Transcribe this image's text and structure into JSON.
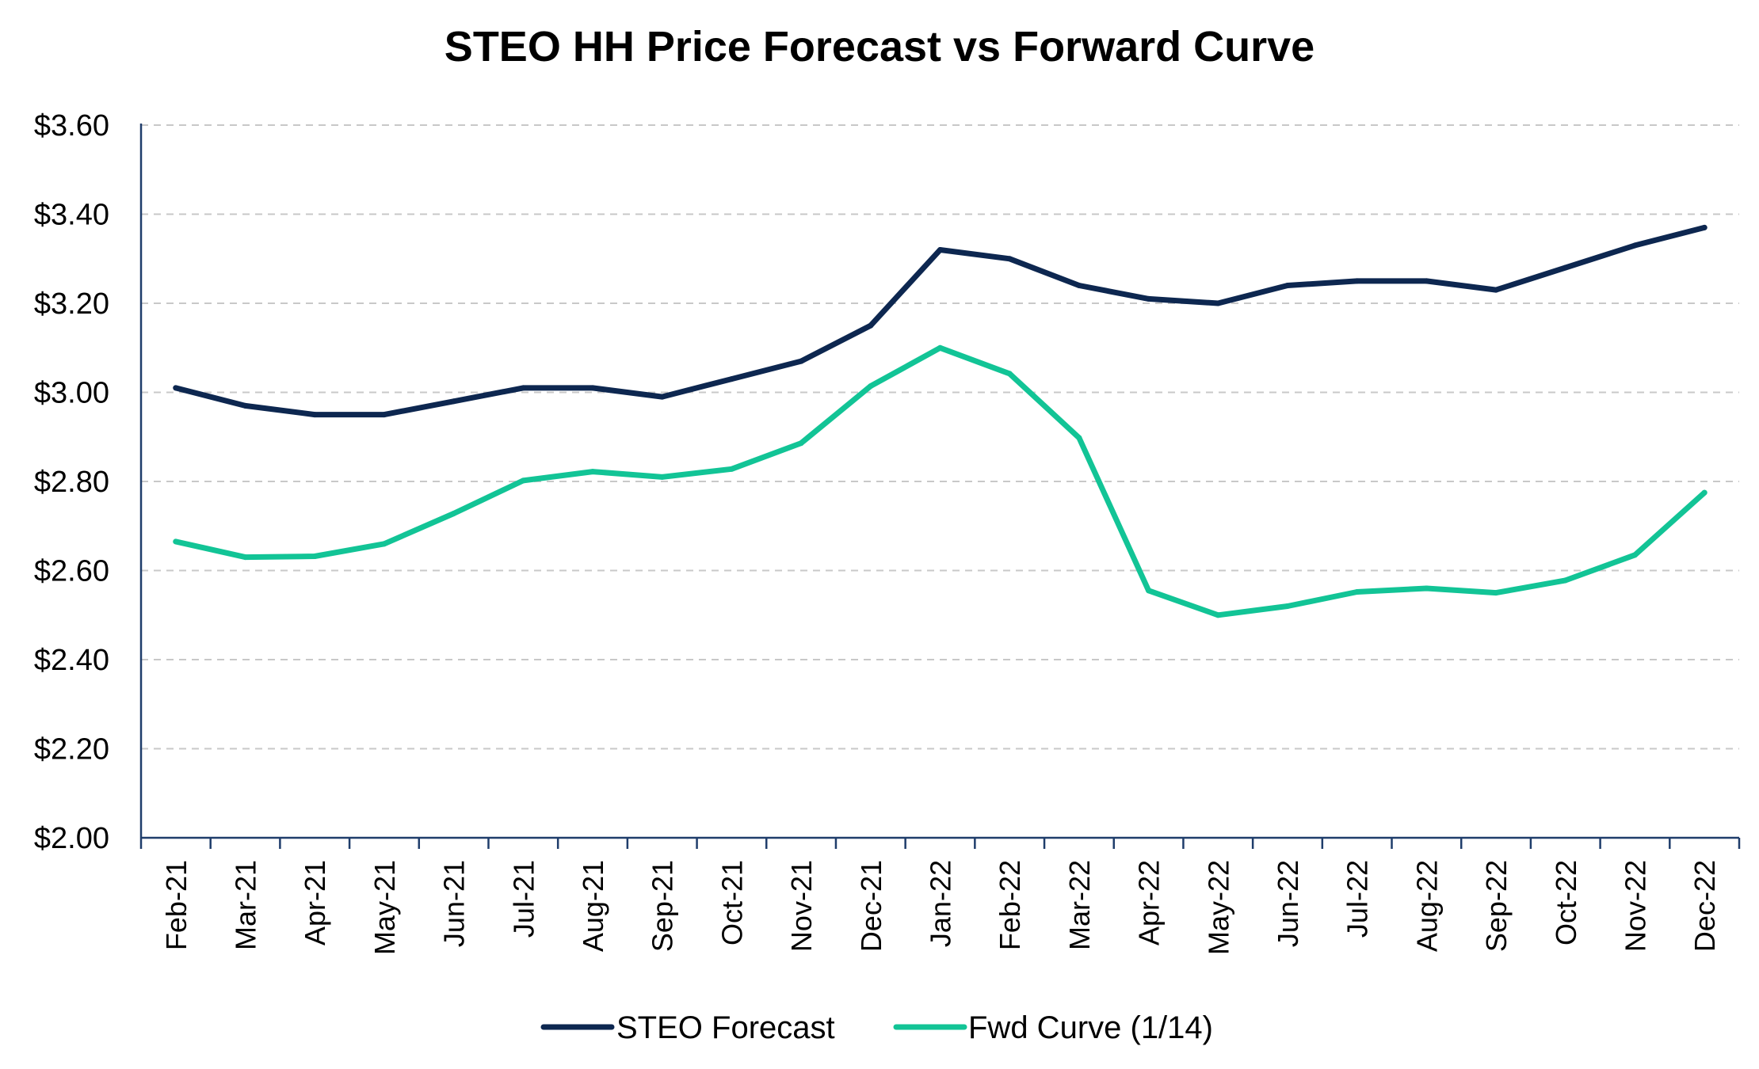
{
  "chart_data": {
    "type": "line",
    "title": "STEO HH Price Forecast vs Forward Curve",
    "xlabel": "",
    "ylabel": "",
    "categories": [
      "Feb-21",
      "Mar-21",
      "Apr-21",
      "May-21",
      "Jun-21",
      "Jul-21",
      "Aug-21",
      "Sep-21",
      "Oct-21",
      "Nov-21",
      "Dec-21",
      "Jan-22",
      "Feb-22",
      "Mar-22",
      "Apr-22",
      "May-22",
      "Jun-22",
      "Jul-22",
      "Aug-22",
      "Sep-22",
      "Oct-22",
      "Nov-22",
      "Dec-22"
    ],
    "series": [
      {
        "name": "STEO Forecast",
        "color": "#0d2750",
        "values": [
          3.01,
          2.97,
          2.95,
          2.95,
          2.98,
          3.01,
          3.01,
          2.99,
          3.03,
          3.07,
          3.15,
          3.32,
          3.3,
          3.24,
          3.21,
          3.2,
          3.24,
          3.25,
          3.25,
          3.23,
          3.28,
          3.33,
          3.37
        ]
      },
      {
        "name": "Fwd Curve (1/14)",
        "color": "#12c496",
        "values": [
          2.665,
          2.63,
          2.632,
          2.66,
          2.728,
          2.802,
          2.822,
          2.81,
          2.828,
          2.886,
          3.014,
          3.1,
          3.042,
          2.898,
          2.555,
          2.5,
          2.52,
          2.552,
          2.56,
          2.55,
          2.578,
          2.635,
          2.775
        ]
      }
    ],
    "ylim": [
      2.0,
      3.6
    ],
    "yticks": [
      2.0,
      2.2,
      2.4,
      2.6,
      2.8,
      3.0,
      3.2,
      3.4,
      3.6
    ],
    "ytick_labels": [
      "$2.00",
      "$2.20",
      "$2.40",
      "$2.60",
      "$2.80",
      "$3.00",
      "$3.20",
      "$3.40",
      "$3.60"
    ],
    "grid": "horizontal-dashed",
    "legend_position": "bottom-center"
  }
}
